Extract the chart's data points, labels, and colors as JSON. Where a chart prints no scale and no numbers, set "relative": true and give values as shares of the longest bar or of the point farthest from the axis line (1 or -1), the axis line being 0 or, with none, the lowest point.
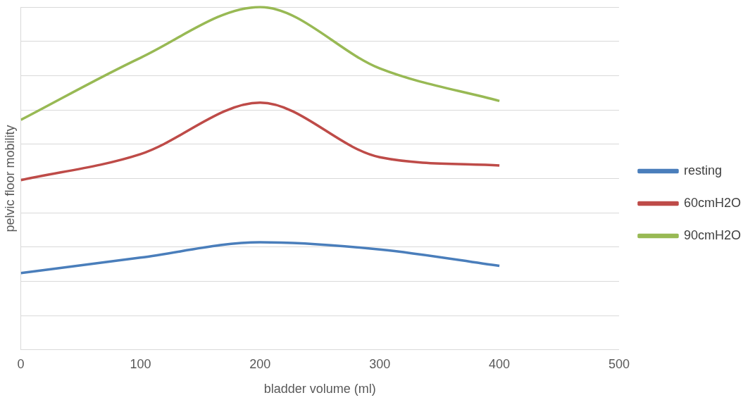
{
  "chart_data": {
    "type": "line",
    "xlabel": "bladder volume (ml)",
    "ylabel": "pelvic floor mobility",
    "relative": true,
    "x": [
      0,
      100,
      200,
      300,
      400
    ],
    "xlim": [
      0,
      500
    ],
    "xticks": [
      0,
      100,
      200,
      300,
      400,
      500
    ],
    "grid": "y",
    "legend": "right",
    "marker": "none",
    "line_style": "solid",
    "series": [
      {
        "name": "resting",
        "color": "#4a7ebb",
        "values": [
          0.224,
          0.269,
          0.314,
          0.293,
          0.245
        ]
      },
      {
        "name": "60cmH2O",
        "color": "#be4b48",
        "values": [
          0.495,
          0.571,
          0.721,
          0.562,
          0.538
        ]
      },
      {
        "name": "90cmH2O",
        "color": "#98b954",
        "values": [
          0.671,
          0.852,
          1,
          0.821,
          0.726
        ]
      }
    ]
  }
}
